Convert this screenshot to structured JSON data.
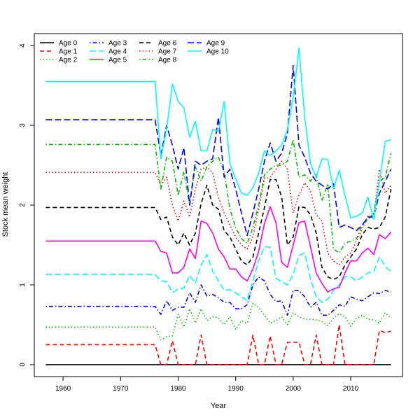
{
  "chart_data": {
    "type": "line",
    "title": "",
    "xlabel": "Year",
    "ylabel": "Stock mean weight",
    "xlim": [
      1955,
      2019
    ],
    "ylim": [
      -0.15,
      4.15
    ],
    "xticks": [
      1960,
      1970,
      1980,
      1990,
      2000,
      2010
    ],
    "yticks": [
      0,
      1,
      2,
      3,
      4
    ],
    "grid": false,
    "legend_position": "top-left",
    "legend_columns": 4,
    "series": [
      {
        "name": "Age 0",
        "color": "#000000",
        "dash": "solid",
        "x": [
          1957,
          2017
        ],
        "y": [
          0,
          0
        ]
      },
      {
        "name": "Age 1",
        "color": "#ff0000",
        "dash": "dashed",
        "x": [
          1957,
          1976,
          1977,
          1978,
          1979,
          1980,
          1981,
          1982,
          1983,
          1984,
          1985,
          1986,
          1987,
          1988,
          1989,
          1990,
          1991,
          1992,
          1993,
          1994,
          1995,
          1996,
          1997,
          1998,
          1999,
          2000,
          2001,
          2002,
          2003,
          2004,
          2005,
          2006,
          2007,
          2008,
          2009,
          2010,
          2011,
          2012,
          2013,
          2014,
          2015,
          2016,
          2017
        ],
        "y": [
          0.25,
          0.25,
          0,
          0,
          0.3,
          0,
          0,
          0,
          0,
          0.37,
          0,
          0,
          0,
          0,
          0,
          0,
          0,
          0,
          0.37,
          0,
          0,
          0.36,
          0,
          0,
          0.28,
          0.28,
          0.28,
          0,
          0,
          0.37,
          0,
          0,
          0,
          0.5,
          0,
          0,
          0,
          0,
          0,
          0,
          0.43,
          0.4,
          0.42
        ]
      },
      {
        "name": "Age 2",
        "color": "#00c000",
        "dash": "dotted",
        "x": [
          1957,
          1976,
          1977,
          1978,
          1979,
          1980,
          1981,
          1982,
          1983,
          1984,
          1985,
          1986,
          1987,
          1988,
          1989,
          1990,
          1991,
          1992,
          1993,
          1994,
          1995,
          1996,
          1997,
          1998,
          1999,
          2000,
          2001,
          2002,
          2003,
          2004,
          2005,
          2006,
          2007,
          2008,
          2009,
          2010,
          2011,
          2012,
          2013,
          2014,
          2015,
          2016,
          2017
        ],
        "y": [
          0.47,
          0.47,
          0.31,
          0.35,
          0.36,
          0.63,
          0.47,
          0.7,
          0.52,
          0.7,
          0.55,
          0.6,
          0.59,
          0.5,
          0.6,
          0.44,
          0.55,
          0.52,
          0.77,
          0.72,
          0.62,
          0.52,
          0.55,
          0.6,
          0.5,
          0.65,
          0.6,
          0.57,
          0.57,
          0.56,
          0.54,
          0.49,
          0.58,
          0.64,
          0.6,
          0.48,
          0.58,
          0.62,
          0.57,
          0.56,
          0.52,
          0.65,
          0.58
        ]
      },
      {
        "name": "Age 3",
        "color": "#0000ff",
        "dash": "dotdash",
        "x": [
          1957,
          1976,
          1977,
          1978,
          1979,
          1980,
          1981,
          1982,
          1983,
          1984,
          1985,
          1986,
          1987,
          1988,
          1989,
          1990,
          1991,
          1992,
          1993,
          1994,
          1995,
          1996,
          1997,
          1998,
          1999,
          2000,
          2001,
          2002,
          2003,
          2004,
          2005,
          2006,
          2007,
          2008,
          2009,
          2010,
          2011,
          2012,
          2013,
          2014,
          2015,
          2016,
          2017
        ],
        "y": [
          0.73,
          0.73,
          0.63,
          0.8,
          0.68,
          0.72,
          0.72,
          0.9,
          0.78,
          1.0,
          0.86,
          0.88,
          0.84,
          0.78,
          0.78,
          0.7,
          0.7,
          0.75,
          1.0,
          1.1,
          1.05,
          0.88,
          0.79,
          0.8,
          0.62,
          0.93,
          0.93,
          0.85,
          0.72,
          0.78,
          0.62,
          0.62,
          0.68,
          0.75,
          0.73,
          0.85,
          0.82,
          0.8,
          0.85,
          0.9,
          0.89,
          0.93,
          0.91
        ]
      },
      {
        "name": "Age 4",
        "color": "#00ffff",
        "dash": "longdash",
        "x": [
          1957,
          1976,
          1977,
          1978,
          1979,
          1980,
          1981,
          1982,
          1983,
          1984,
          1985,
          1986,
          1987,
          1988,
          1989,
          1990,
          1991,
          1992,
          1993,
          1994,
          1995,
          1996,
          1997,
          1998,
          1999,
          2000,
          2001,
          2002,
          2003,
          2004,
          2005,
          2006,
          2007,
          2008,
          2009,
          2010,
          2011,
          2012,
          2013,
          2014,
          2015,
          2016,
          2017
        ],
        "y": [
          1.13,
          1.13,
          1.05,
          1.04,
          0.9,
          0.95,
          0.96,
          1.12,
          1.02,
          1.25,
          1.38,
          1.17,
          1.05,
          0.93,
          0.94,
          0.9,
          0.85,
          0.8,
          1.05,
          1.3,
          1.48,
          1.47,
          1.08,
          1.04,
          1.0,
          1.13,
          1.37,
          1.4,
          1.08,
          0.85,
          0.78,
          0.82,
          0.93,
          1.0,
          1.1,
          1.1,
          1.05,
          1.1,
          1.15,
          1.17,
          1.35,
          1.23,
          1.17
        ]
      },
      {
        "name": "Age 5",
        "color": "#ff00ff",
        "dash": "solid",
        "x": [
          1957,
          1976,
          1977,
          1978,
          1979,
          1980,
          1981,
          1982,
          1983,
          1984,
          1985,
          1986,
          1987,
          1988,
          1989,
          1990,
          1991,
          1992,
          1993,
          1994,
          1995,
          1996,
          1997,
          1998,
          1999,
          2000,
          2001,
          2002,
          2003,
          2004,
          2005,
          2006,
          2007,
          2008,
          2009,
          2010,
          2011,
          2012,
          2013,
          2014,
          2015,
          2016,
          2017
        ],
        "y": [
          1.55,
          1.55,
          1.42,
          1.4,
          1.15,
          1.15,
          1.22,
          1.45,
          1.33,
          1.8,
          1.77,
          1.65,
          1.45,
          1.35,
          1.2,
          1.2,
          1.1,
          1.05,
          1.2,
          1.42,
          1.77,
          1.98,
          1.78,
          1.28,
          1.22,
          1.5,
          1.78,
          1.8,
          1.48,
          1.15,
          1.02,
          0.91,
          0.95,
          0.97,
          1.15,
          1.3,
          1.3,
          1.4,
          1.46,
          1.38,
          1.63,
          1.58,
          1.66
        ]
      },
      {
        "name": "Age 6",
        "color": "#000000",
        "dash": "dashed",
        "x": [
          1957,
          1976,
          1977,
          1978,
          1979,
          1980,
          1981,
          1982,
          1983,
          1984,
          1985,
          1986,
          1987,
          1988,
          1989,
          1990,
          1991,
          1992,
          1993,
          1994,
          1995,
          1996,
          1997,
          1998,
          1999,
          2000,
          2001,
          2002,
          2003,
          2004,
          2005,
          2006,
          2007,
          2008,
          2009,
          2010,
          2011,
          2012,
          2013,
          2014,
          2015,
          2016,
          2017
        ],
        "y": [
          1.97,
          1.97,
          1.82,
          1.85,
          1.6,
          1.5,
          1.65,
          1.5,
          1.65,
          2.02,
          2.25,
          2.0,
          1.95,
          1.68,
          1.6,
          1.45,
          1.3,
          1.25,
          1.35,
          1.65,
          1.97,
          2.32,
          2.32,
          2.1,
          1.5,
          1.6,
          1.98,
          1.97,
          1.88,
          1.65,
          1.22,
          1.1,
          1.07,
          1.1,
          1.25,
          1.35,
          1.45,
          1.63,
          1.72,
          1.7,
          1.72,
          1.85,
          2.2
        ]
      },
      {
        "name": "Age 7",
        "color": "#ff0000",
        "dash": "dotted",
        "x": [
          1957,
          1976,
          1977,
          1978,
          1979,
          1980,
          1981,
          1982,
          1983,
          1984,
          1985,
          1986,
          1987,
          1988,
          1989,
          1990,
          1991,
          1992,
          1993,
          1994,
          1995,
          1996,
          1997,
          1998,
          1999,
          2000,
          2001,
          2002,
          2003,
          2004,
          2005,
          2006,
          2007,
          2008,
          2009,
          2010,
          2011,
          2012,
          2013,
          2014,
          2015,
          2016,
          2017
        ],
        "y": [
          2.41,
          2.41,
          2.25,
          2.35,
          2.0,
          1.8,
          2.05,
          1.85,
          2.2,
          2.45,
          2.48,
          2.4,
          2.1,
          1.9,
          1.75,
          1.6,
          1.5,
          1.45,
          1.6,
          1.95,
          2.33,
          2.35,
          2.45,
          2.55,
          2.45,
          1.9,
          2.12,
          2.28,
          2.18,
          1.88,
          1.8,
          1.4,
          1.3,
          1.25,
          1.35,
          1.4,
          1.55,
          1.7,
          1.87,
          1.85,
          2.45,
          2.15,
          2.25
        ]
      },
      {
        "name": "Age 8",
        "color": "#00c000",
        "dash": "dotdash",
        "x": [
          1957,
          1976,
          1977,
          1978,
          1979,
          1980,
          1981,
          1982,
          1983,
          1984,
          1985,
          1986,
          1987,
          1988,
          1989,
          1990,
          1991,
          1992,
          1993,
          1994,
          1995,
          1996,
          1997,
          1998,
          1999,
          2000,
          2001,
          2002,
          2003,
          2004,
          2005,
          2006,
          2007,
          2008,
          2009,
          2010,
          2011,
          2012,
          2013,
          2014,
          2015,
          2016,
          2017
        ],
        "y": [
          2.76,
          2.76,
          2.2,
          2.6,
          2.55,
          2.12,
          2.42,
          2.0,
          2.48,
          2.3,
          2.48,
          2.55,
          2.6,
          2.42,
          1.95,
          1.72,
          1.58,
          1.52,
          1.72,
          2.0,
          2.38,
          2.45,
          2.5,
          2.5,
          2.55,
          2.82,
          2.35,
          2.38,
          2.3,
          2.38,
          2.05,
          2.27,
          1.45,
          1.4,
          1.52,
          1.55,
          1.58,
          1.75,
          1.82,
          1.9,
          2.3,
          2.35,
          2.65
        ]
      },
      {
        "name": "Age 9",
        "color": "#0000ff",
        "dash": "longdash",
        "x": [
          1957,
          1976,
          1977,
          1978,
          1979,
          1980,
          1981,
          1982,
          1983,
          1984,
          1985,
          1986,
          1987,
          1988,
          1989,
          1990,
          1991,
          1992,
          1993,
          1994,
          1995,
          1996,
          1997,
          1998,
          1999,
          2000,
          2001,
          2002,
          2003,
          2004,
          2005,
          2006,
          2007,
          2008,
          2009,
          2010,
          2011,
          2012,
          2013,
          2014,
          2015,
          2016,
          2017
        ],
        "y": [
          3.07,
          3.07,
          2.62,
          3.0,
          2.75,
          2.45,
          2.72,
          2.0,
          2.55,
          2.5,
          2.55,
          2.58,
          3.1,
          2.35,
          2.45,
          2.2,
          1.9,
          1.62,
          1.9,
          2.2,
          2.55,
          2.78,
          2.55,
          2.65,
          2.9,
          3.75,
          2.75,
          2.6,
          2.4,
          2.3,
          2.25,
          2.2,
          2.27,
          1.72,
          1.75,
          1.72,
          1.68,
          1.75,
          1.85,
          1.85,
          2.15,
          2.3,
          2.45
        ]
      },
      {
        "name": "Age 10",
        "color": "#00ffff",
        "dash": "solid",
        "x": [
          1957,
          1976,
          1977,
          1978,
          1979,
          1980,
          1981,
          1982,
          1983,
          1984,
          1985,
          1986,
          1987,
          1988,
          1989,
          1990,
          1991,
          1992,
          1993,
          1994,
          1995,
          1996,
          1997,
          1998,
          1999,
          2000,
          2001,
          2002,
          2003,
          2004,
          2005,
          2006,
          2007,
          2008,
          2009,
          2010,
          2011,
          2012,
          2013,
          2014,
          2015,
          2016,
          2017
        ],
        "y": [
          3.55,
          3.55,
          2.58,
          2.95,
          3.52,
          3.3,
          3.22,
          2.85,
          3.05,
          2.68,
          2.68,
          2.95,
          2.92,
          3.3,
          2.52,
          2.33,
          2.15,
          2.12,
          2.22,
          2.4,
          2.68,
          2.62,
          2.68,
          2.75,
          2.95,
          3.35,
          3.97,
          3.1,
          2.52,
          2.35,
          2.58,
          2.57,
          2.2,
          2.44,
          2.12,
          1.84,
          1.86,
          1.9,
          2.1,
          1.82,
          2.3,
          2.8,
          2.82
        ]
      }
    ]
  }
}
